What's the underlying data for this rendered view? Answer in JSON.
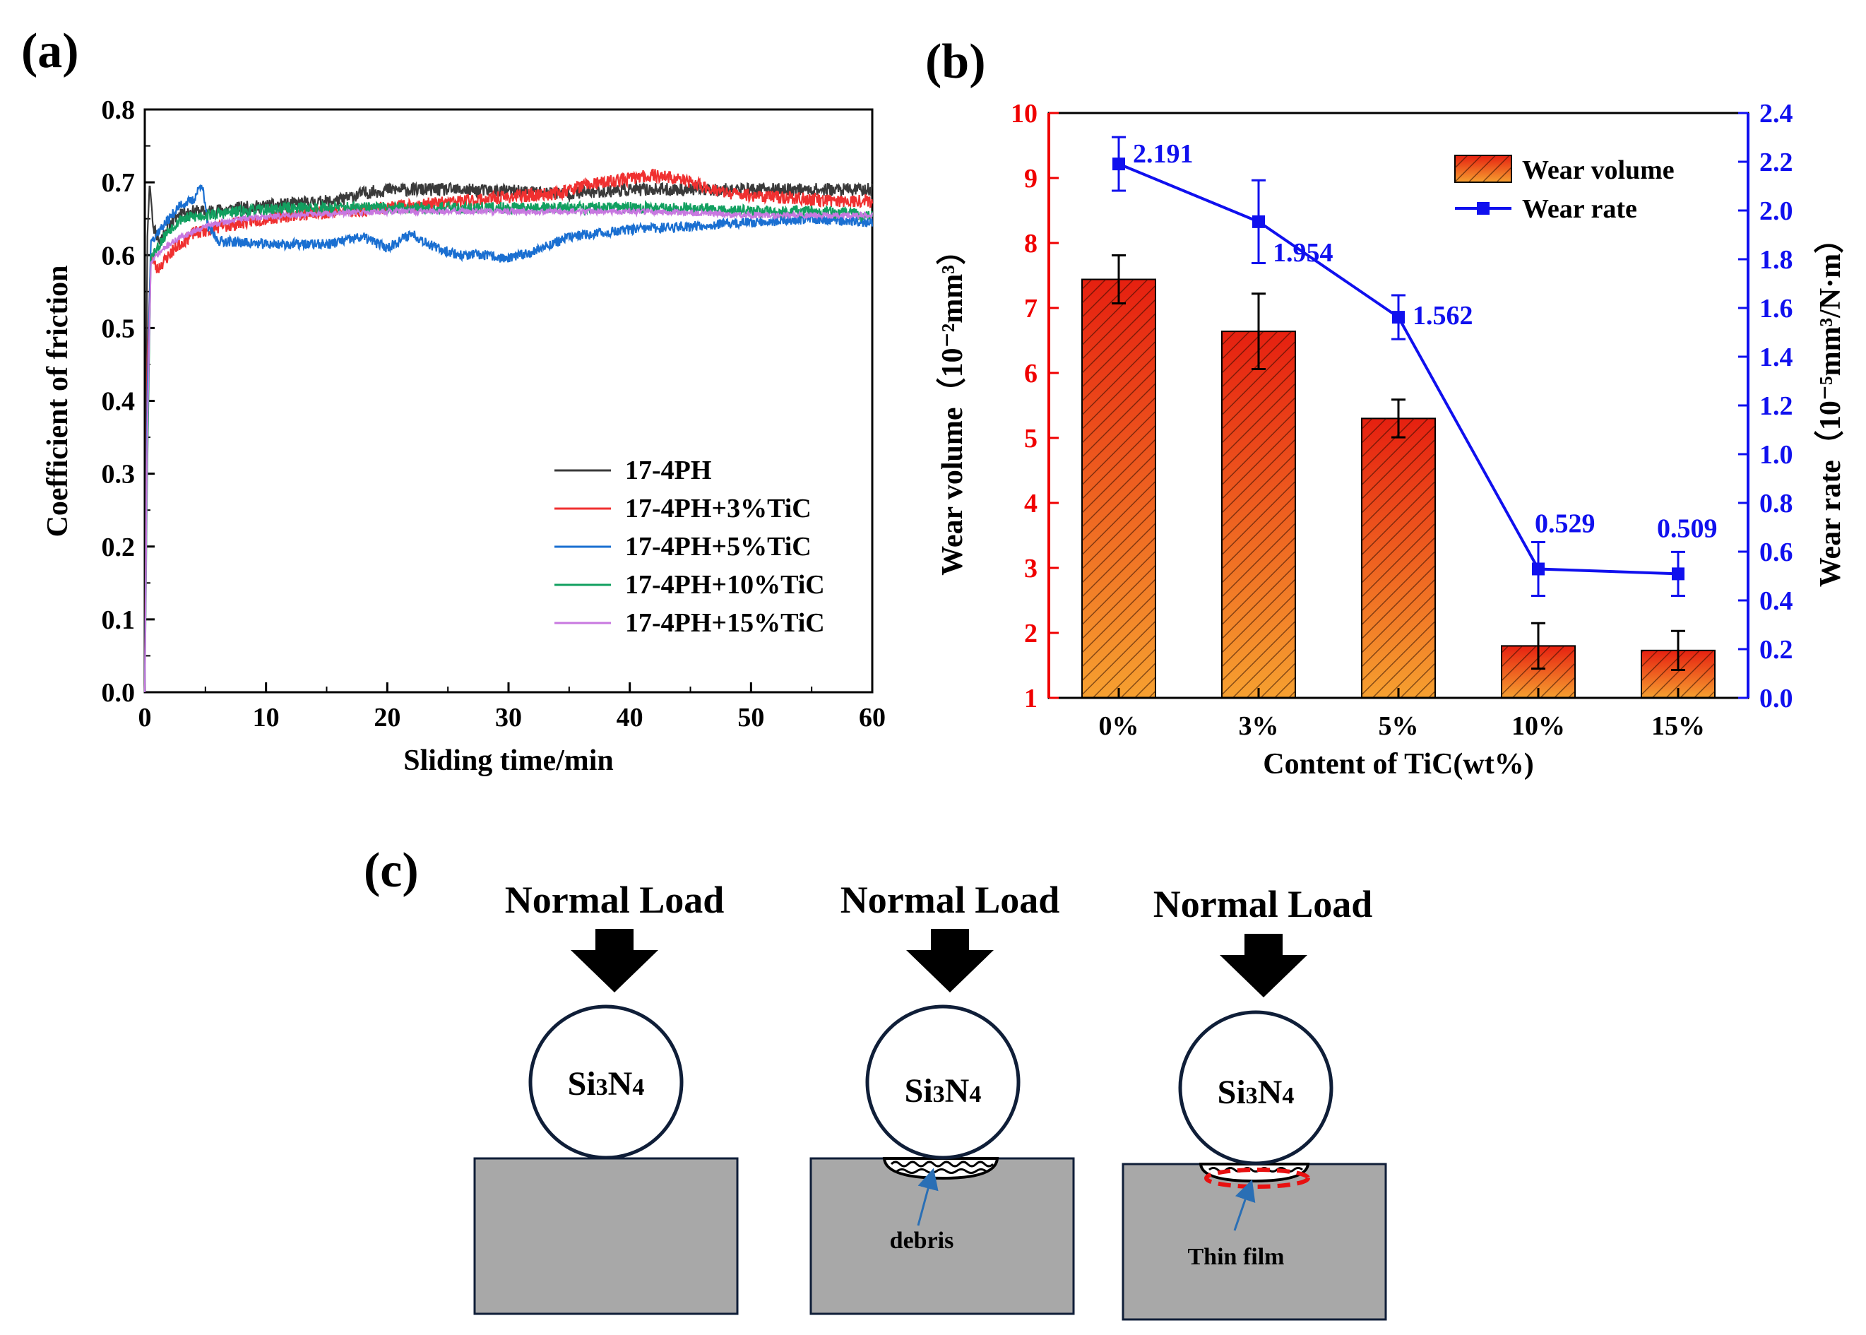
{
  "panels": {
    "a": "(a)",
    "b": "(b)",
    "c": "(c)"
  },
  "colors": {
    "s0": "#3a3a3a",
    "s3": "#f03030",
    "s5": "#1a6fd1",
    "s10": "#12a060",
    "s15": "#c878e0",
    "bar_top": "#e62010",
    "bar_bottom": "#f6a030",
    "line": "#1010ee",
    "left_axis": "#f00000",
    "substrate": "#a8a8a8",
    "ball_border": "#0f1e38",
    "film": "#e81010",
    "pointer": "#2a6fb5"
  },
  "chart_data": [
    {
      "id": "a",
      "type": "line",
      "xlabel": "Sliding time/min",
      "ylabel": "Coefficient of friction",
      "xlim": [
        0,
        60
      ],
      "ylim": [
        0,
        0.8
      ],
      "xticks": [
        "0",
        "10",
        "20",
        "30",
        "40",
        "50",
        "60"
      ],
      "yticks": [
        "0.0",
        "0.1",
        "0.2",
        "0.3",
        "0.4",
        "0.5",
        "0.6",
        "0.7",
        "0.8"
      ],
      "legend_position": "bottom-right",
      "series": [
        {
          "name": "17-4PH",
          "color_key": "s0",
          "seed": 11,
          "noise": 0.009,
          "x": [
            0,
            0.2,
            0.4,
            0.7,
            1.2,
            2,
            3,
            5,
            8,
            12,
            16,
            18,
            20,
            25,
            30,
            35,
            40,
            45,
            50,
            55,
            60
          ],
          "y": [
            0,
            0.62,
            0.7,
            0.64,
            0.62,
            0.64,
            0.66,
            0.66,
            0.665,
            0.67,
            0.675,
            0.685,
            0.69,
            0.69,
            0.688,
            0.685,
            0.69,
            0.69,
            0.69,
            0.69,
            0.69
          ]
        },
        {
          "name": "17-4PH+3%TiC",
          "color_key": "s3",
          "seed": 23,
          "noise": 0.009,
          "x": [
            0,
            0.2,
            0.5,
            1,
            1.5,
            2.5,
            4,
            8,
            12,
            20,
            30,
            34,
            36,
            38,
            40,
            42,
            44,
            46,
            48,
            52,
            56,
            60
          ],
          "y": [
            0,
            0.45,
            0.6,
            0.58,
            0.59,
            0.61,
            0.63,
            0.645,
            0.655,
            0.665,
            0.68,
            0.685,
            0.695,
            0.7,
            0.705,
            0.71,
            0.705,
            0.695,
            0.685,
            0.68,
            0.675,
            0.675
          ]
        },
        {
          "name": "17-4PH+5%TiC",
          "color_key": "s5",
          "seed": 37,
          "noise": 0.007,
          "x": [
            0,
            0.2,
            0.5,
            1,
            2,
            3,
            4,
            4.7,
            5.2,
            6,
            10,
            15,
            18,
            20,
            22,
            24,
            26,
            28,
            30,
            32,
            35,
            40,
            45,
            50,
            55,
            60
          ],
          "y": [
            0,
            0.4,
            0.62,
            0.63,
            0.65,
            0.67,
            0.675,
            0.7,
            0.64,
            0.62,
            0.615,
            0.615,
            0.625,
            0.61,
            0.63,
            0.61,
            0.6,
            0.6,
            0.595,
            0.605,
            0.625,
            0.635,
            0.64,
            0.645,
            0.65,
            0.645
          ]
        },
        {
          "name": "17-4PH+10%TiC",
          "color_key": "s10",
          "seed": 53,
          "noise": 0.008,
          "x": [
            0,
            0.2,
            0.5,
            1,
            2,
            3,
            5,
            8,
            12,
            20,
            25,
            30,
            35,
            40,
            45,
            50,
            55,
            60
          ],
          "y": [
            0,
            0.3,
            0.6,
            0.61,
            0.635,
            0.65,
            0.655,
            0.66,
            0.665,
            0.665,
            0.665,
            0.665,
            0.665,
            0.665,
            0.665,
            0.66,
            0.66,
            0.655
          ]
        },
        {
          "name": "17-4PH+15%TiC",
          "color_key": "s15",
          "seed": 71,
          "noise": 0.004,
          "x": [
            0,
            0.2,
            0.5,
            1,
            2,
            3,
            5,
            8,
            12,
            20,
            30,
            40,
            50,
            60
          ],
          "y": [
            0,
            0.35,
            0.59,
            0.6,
            0.615,
            0.625,
            0.64,
            0.65,
            0.655,
            0.66,
            0.66,
            0.66,
            0.655,
            0.655
          ]
        }
      ]
    },
    {
      "id": "b",
      "type": "bar",
      "xlabel": "Content of TiC(wt%)",
      "categories": [
        "0%",
        "3%",
        "5%",
        "10%",
        "15%"
      ],
      "ylabel_left": "Wear volume（10⁻²mm³）",
      "ylabel_right": "Wear rate（10⁻⁵mm³/N·m）",
      "ylim_left": [
        1,
        10
      ],
      "ylim_right": [
        0,
        2.4
      ],
      "yticks_left": [
        "1",
        "2",
        "3",
        "4",
        "5",
        "6",
        "7",
        "8",
        "9",
        "10"
      ],
      "yticks_right": [
        "0.0",
        "0.2",
        "0.4",
        "0.6",
        "0.8",
        "1.0",
        "1.2",
        "1.4",
        "1.6",
        "1.8",
        "2.0",
        "2.2",
        "2.4"
      ],
      "legend_position": "top-right",
      "series": [
        {
          "name": "Wear volume",
          "kind": "bar",
          "axis": "left",
          "values": [
            7.44,
            6.64,
            5.3,
            1.8,
            1.73
          ],
          "errors": [
            0.37,
            0.58,
            0.29,
            0.35,
            0.3
          ]
        },
        {
          "name": "Wear rate",
          "kind": "line",
          "axis": "right",
          "values": [
            2.191,
            1.954,
            1.562,
            0.529,
            0.509
          ],
          "errors": [
            0.11,
            0.17,
            0.09,
            0.11,
            0.09
          ],
          "labels": [
            "2.191",
            "1.954",
            "1.562",
            "0.529",
            "0.509"
          ]
        }
      ]
    }
  ],
  "diagram": {
    "load_label": "Normal Load",
    "ball": {
      "main": "Si",
      "sub1": "3",
      "mid": "N",
      "sub2": "4"
    },
    "debris_label": "debris",
    "film_label": "Thin film"
  }
}
